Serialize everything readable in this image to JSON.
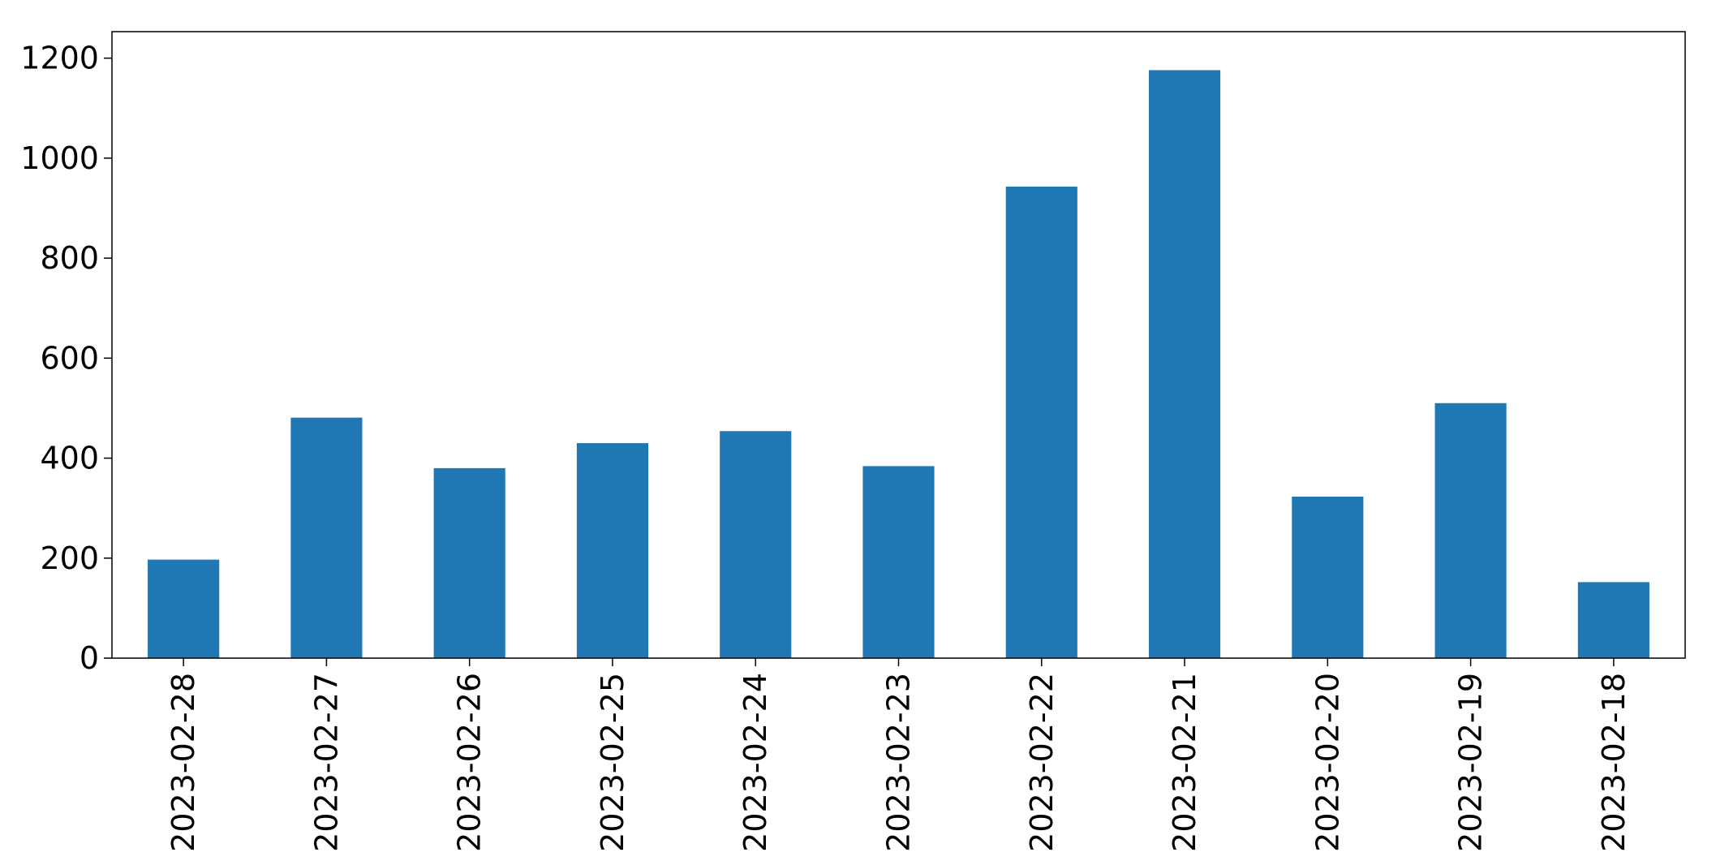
{
  "chart_data": {
    "type": "bar",
    "title": "",
    "xlabel": "",
    "ylabel": "",
    "categories": [
      "2023-02-28",
      "2023-02-27",
      "2023-02-26",
      "2023-02-25",
      "2023-02-24",
      "2023-02-23",
      "2023-02-22",
      "2023-02-21",
      "2023-02-20",
      "2023-02-19",
      "2023-02-18"
    ],
    "values": [
      197,
      481,
      380,
      430,
      454,
      384,
      943,
      1176,
      323,
      510,
      152
    ],
    "ylim": [
      0,
      1200
    ],
    "yticks": [
      0,
      200,
      400,
      600,
      800,
      1000,
      1200
    ],
    "ytick_labels": [
      "0",
      "200",
      "400",
      "600",
      "800",
      "1000",
      "1200"
    ],
    "grid": false,
    "legend": "none",
    "bar_color": "#1f77b4"
  }
}
